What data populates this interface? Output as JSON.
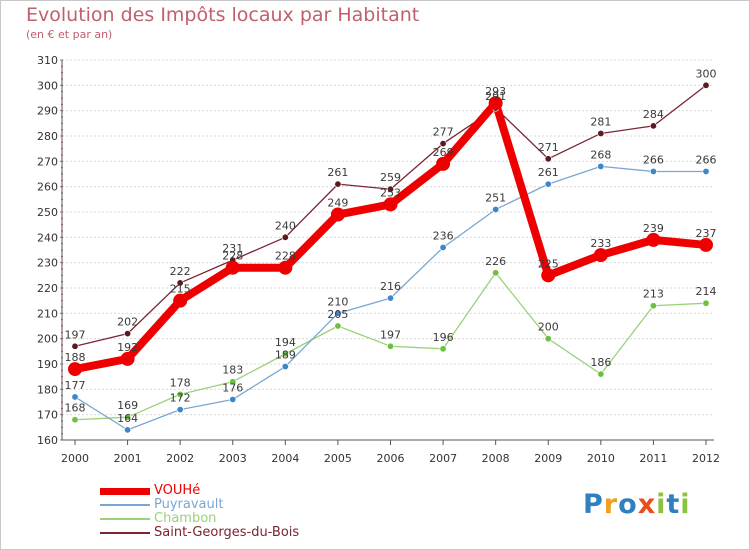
{
  "chart_data": {
    "type": "line",
    "title": "Evolution des Impôts locaux par Habitant",
    "subtitle": "(en € et par an)",
    "xlabel": "",
    "ylabel": "",
    "ylim": [
      160,
      310
    ],
    "yticks": [
      160,
      170,
      180,
      190,
      200,
      210,
      220,
      230,
      240,
      250,
      260,
      270,
      280,
      290,
      300,
      310
    ],
    "grid": "horizontal",
    "legend_position": "bottom-left",
    "categories": [
      "2000",
      "2001",
      "2002",
      "2003",
      "2004",
      "2005",
      "2006",
      "2007",
      "2008",
      "2009",
      "2010",
      "2011",
      "2012"
    ],
    "series": [
      {
        "name": "Saint-Georges-du-Bois",
        "color": "#7b2432",
        "point_color": "#5a1a20",
        "values": [
          197,
          202,
          222,
          231,
          240,
          261,
          259,
          277,
          291,
          271,
          281,
          284,
          300
        ]
      },
      {
        "name": "Chambon",
        "color": "#9bd17a",
        "point_color": "#6cc040",
        "values": [
          168,
          169,
          178,
          183,
          194,
          205,
          197,
          196,
          226,
          200,
          186,
          213,
          214
        ]
      },
      {
        "name": "Puyravault",
        "color": "#7aa7d2",
        "point_color": "#3f86c8",
        "values": [
          177,
          164,
          172,
          176,
          189,
          210,
          216,
          236,
          251,
          261,
          268,
          266,
          266
        ]
      },
      {
        "name": "VOUHé",
        "color": "#ee0000",
        "point_color": "#ee0000",
        "values": [
          188,
          192,
          215,
          228,
          228,
          249,
          253,
          269,
          293,
          225,
          233,
          239,
          237
        ]
      }
    ],
    "legend_order": [
      "VOUHé",
      "Puyravault",
      "Chambon",
      "Saint-Georges-du-Bois"
    ]
  },
  "legend": {
    "items": [
      {
        "label": "VOUHé",
        "color": "#ee0000"
      },
      {
        "label": "Puyravault",
        "color": "#7aa7d2"
      },
      {
        "label": "Chambon",
        "color": "#9bd17a"
      },
      {
        "label": "Saint-Georges-du-Bois",
        "color": "#7b2432"
      }
    ]
  },
  "logo": {
    "letters": [
      "P",
      "r",
      "o",
      "x",
      "i",
      "t",
      "i"
    ],
    "colors": [
      "#2f7fc1",
      "#f0a020",
      "#2f7fc1",
      "#e84e1b",
      "#8bc23f",
      "#2f7fc1",
      "#8bc23f"
    ]
  }
}
